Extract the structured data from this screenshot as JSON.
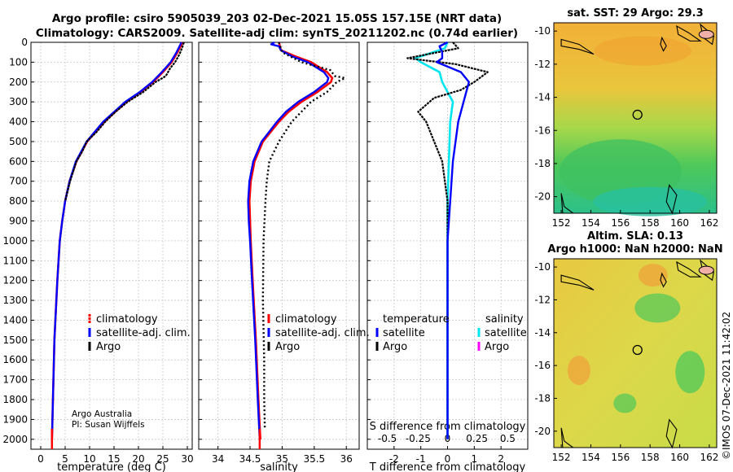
{
  "header": {
    "title_line1": "Argo profile: csiro 5905039_203 02-Dec-2021 15.05S 157.15E (NRT data)",
    "title_line2": "Climatology: CARS2009. Satellite-adj clim: synTS_20211202.nc (0.74d earlier)"
  },
  "colors": {
    "climatology": "#ff0000",
    "satellite": "#0000ff",
    "argo": "#000000",
    "s_satellite": "#00e5ee",
    "s_argo": "#ff00ff"
  },
  "credit": {
    "line1": "Argo Australia",
    "line2": "PI: Susan Wijffels"
  },
  "timestamp": "©IMOS 07-Dec-2021 11:42:02",
  "chart_data": [
    {
      "type": "line",
      "panel": "temperature",
      "xlabel": "temperature (deg C)",
      "xlim": [
        -2,
        31
      ],
      "xticks": [
        0,
        5,
        10,
        15,
        20,
        25,
        30
      ],
      "ylim": [
        0,
        2050
      ],
      "yticks": [
        0,
        100,
        200,
        300,
        400,
        500,
        600,
        700,
        800,
        900,
        1000,
        1100,
        1200,
        1300,
        1400,
        1500,
        1600,
        1700,
        1800,
        1900,
        2000
      ],
      "yreversed": true,
      "grid": true,
      "legend": [
        "climatology",
        "satellite-adj. clim.",
        "Argo"
      ],
      "legend_position": "lower-right",
      "series": [
        {
          "name": "climatology",
          "y": [
            0,
            50,
            100,
            150,
            200,
            250,
            300,
            400,
            500,
            600,
            700,
            800,
            900,
            1000,
            1200,
            1500,
            1800,
            2000
          ],
          "x": [
            29,
            28,
            26.8,
            25,
            23,
            20.5,
            17.5,
            13,
            9.5,
            7.3,
            5.9,
            5.0,
            4.4,
            3.9,
            3.4,
            2.8,
            2.5,
            2.3
          ]
        },
        {
          "name": "satellite-adj. clim.",
          "y": [
            0,
            50,
            100,
            150,
            200,
            250,
            300,
            400,
            500,
            600,
            700,
            800,
            900,
            1000,
            1200,
            1500,
            1800,
            2000
          ],
          "x": [
            28.8,
            27.8,
            26.6,
            24.8,
            22.8,
            20.3,
            17.3,
            12.8,
            9.4,
            7.2,
            5.9,
            5.0,
            4.4,
            3.9,
            3.4,
            2.8,
            2.5,
            2.3
          ]
        },
        {
          "name": "Argo",
          "y": [
            0,
            30,
            60,
            100,
            130,
            170,
            200,
            250,
            300,
            350,
            400,
            450,
            500,
            550,
            600,
            700,
            800
          ],
          "x": [
            29.3,
            28.9,
            28.4,
            27.5,
            26.5,
            25.6,
            23.5,
            21,
            17.8,
            15.3,
            13.2,
            11.5,
            9.4,
            8.5,
            7.3,
            6.0,
            5.0
          ]
        }
      ]
    },
    {
      "type": "line",
      "panel": "salinity",
      "xlabel": "salinity",
      "xlim": [
        33.7,
        36.2
      ],
      "xticks": [
        34,
        34.5,
        35,
        35.5,
        36
      ],
      "ylim": [
        0,
        2050
      ],
      "yreversed": true,
      "grid": true,
      "legend": [
        "climatology",
        "satellite-adj. clim.",
        "Argo"
      ],
      "legend_position": "lower-right",
      "series": [
        {
          "name": "climatology",
          "y": [
            0,
            40,
            70,
            100,
            150,
            180,
            200,
            250,
            300,
            350,
            400,
            500,
            600,
            700,
            800,
            900,
            1000,
            1200,
            1500,
            1800,
            2000
          ],
          "x": [
            34.95,
            34.98,
            35.2,
            35.45,
            35.7,
            35.78,
            35.76,
            35.55,
            35.3,
            35.1,
            34.95,
            34.7,
            34.57,
            34.51,
            34.49,
            34.5,
            34.51,
            34.54,
            34.59,
            34.63,
            34.66
          ]
        },
        {
          "name": "satellite-adj. clim.",
          "y": [
            0,
            10,
            20,
            40,
            70,
            100,
            150,
            180,
            200,
            250,
            300,
            350,
            400,
            500,
            600,
            700,
            800,
            900,
            1000,
            1200,
            1500,
            1800,
            2000
          ],
          "x": [
            34.88,
            34.83,
            34.95,
            34.98,
            35.15,
            35.4,
            35.65,
            35.72,
            35.7,
            35.5,
            35.25,
            35.06,
            34.92,
            34.68,
            34.55,
            34.49,
            34.47,
            34.48,
            34.5,
            34.53,
            34.58,
            34.62,
            34.65
          ]
        },
        {
          "name": "Argo",
          "y": [
            0,
            50,
            100,
            140,
            170,
            180,
            200,
            250,
            300,
            400,
            500,
            600,
            650,
            700,
            800,
            1000,
            1300,
            1600,
            1800,
            1950
          ],
          "x": [
            34.95,
            35.0,
            35.3,
            35.75,
            35.82,
            35.98,
            35.85,
            35.7,
            35.45,
            35.15,
            34.95,
            34.8,
            34.78,
            34.76,
            34.74,
            34.71,
            34.7,
            34.72,
            34.72,
            34.73
          ]
        }
      ]
    },
    {
      "type": "line",
      "panel": "difference",
      "xlabel": "T difference from climatology",
      "xlabel_top": "S difference from climatology",
      "xlim": [
        -3,
        3
      ],
      "xticks": [
        -2,
        -1,
        0,
        1,
        2
      ],
      "xticks_top": [
        "-0.5",
        "-0.25",
        "0",
        "0.25",
        "0.5"
      ],
      "ylim": [
        0,
        2050
      ],
      "yreversed": true,
      "grid": true,
      "legend_groups": [
        {
          "title": "temperature",
          "items": [
            "satellite",
            "Argo"
          ]
        },
        {
          "title": "salinity",
          "items": [
            "satellite",
            "Argo"
          ]
        }
      ],
      "series": [
        {
          "name": "T satellite",
          "y": [
            0,
            20,
            50,
            80,
            100,
            150,
            200,
            300,
            400,
            600,
            800,
            1000,
            1500,
            2000
          ],
          "x": [
            0.0,
            -0.3,
            -0.2,
            -0.2,
            -0.4,
            0.5,
            0.8,
            0.6,
            0.4,
            0.2,
            0.1,
            0.0,
            0.0,
            0.0
          ]
        },
        {
          "name": "T Argo",
          "y": [
            0,
            30,
            80,
            110,
            150,
            180,
            200,
            240,
            280,
            350,
            400,
            500,
            600,
            700,
            800,
            1000,
            1200,
            1500,
            2000
          ],
          "x": [
            0.2,
            0.4,
            -1.5,
            0.3,
            1.5,
            1.2,
            1.0,
            0.5,
            -0.5,
            -1.1,
            -0.8,
            -0.5,
            -0.2,
            -0.1,
            0,
            0,
            0,
            0,
            0
          ]
        },
        {
          "name": "S satellite",
          "y": [
            0,
            30,
            80,
            100,
            150,
            200,
            250,
            300,
            400,
            600,
            800,
            1000,
            1500,
            2000
          ],
          "x": [
            0.0,
            -0.1,
            -1.2,
            -1.0,
            -0.3,
            -0.2,
            0.0,
            0.2,
            0.1,
            0.05,
            0.0,
            0.0,
            0.0,
            0.0
          ]
        }
      ]
    },
    {
      "type": "heatmap",
      "panel": "sst_map",
      "title": "sat. SST: 29 Argo: 29.3",
      "xticks": [
        152,
        154,
        156,
        158,
        160,
        162
      ],
      "yticks": [
        -10,
        -12,
        -14,
        -16,
        -18,
        -20
      ],
      "xlim": [
        151.5,
        162.5
      ],
      "ylim": [
        -21,
        -9.5
      ],
      "marker": {
        "lon": 157.15,
        "lat": -15.05
      }
    },
    {
      "type": "heatmap",
      "panel": "sla_map",
      "title": "Altim. SLA: 0.13",
      "subtitle": "Argo h1000: NaN h2000: NaN",
      "xticks": [
        152,
        154,
        156,
        158,
        160,
        162
      ],
      "yticks": [
        -10,
        -12,
        -14,
        -16,
        -18,
        -20
      ],
      "xlim": [
        151.5,
        162.5
      ],
      "ylim": [
        -21,
        -9.5
      ],
      "marker": {
        "lon": 157.15,
        "lat": -15.05
      }
    }
  ]
}
